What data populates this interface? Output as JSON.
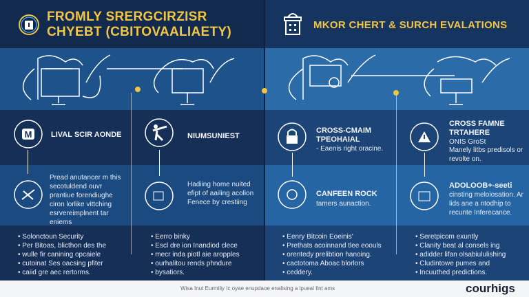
{
  "left": {
    "title_line1": "FROMLY SRERGCIRZISR",
    "title_line2": "CHYEBT (CBITOVAALIAETY)",
    "col1": {
      "heading": "LIVAL SCIR AONDE",
      "body": "Pread anutancer m this secotuldend ouvr prantiue forendiughe ciron lorlike vittching esrvereimplnent tar eniems",
      "bullets": [
        "Solonctoun Security",
        "Per Bitoas, blicthon des the",
        "wulle fir canining opcaiele",
        "cutoinat Ses oacsing pfiter",
        "caiid gre aec rertorms."
      ]
    },
    "col2": {
      "heading": "NIUMSUNIEST",
      "body": "Hadiing home nuited efipt of aailing acolion Fenece by crestiing",
      "bullets": [
        "Eerro binky",
        "Escl dre ion Inandiod clece",
        "mecr inda piotl aie aropples",
        "ourhalitou rends phndure",
        "bysatiors."
      ]
    }
  },
  "right": {
    "title": "MKOR CHERT & SURCH EVALATIONS",
    "col1": {
      "heading": "CROSS-CMAIM TPEOHAIAL",
      "sub": "- Eaenis right oracine.",
      "heading2": "CANFEEN ROCK",
      "body2": "tamers aunaction.",
      "bullets": [
        "Eenry Bitcoin Eoeinis'",
        "Prethats acoinnand tlee eoouls",
        "orentedy prelibtion hanoing.",
        "cactotoma Aboac blorlors",
        "ceddery."
      ]
    },
    "col2": {
      "heading": "CROSS FAMNE TRTAHERE",
      "sub": "ONIS GroSt",
      "body": "Manely litbs predisols or revolte on.",
      "heading2": "ADOLOOB+-seeti",
      "body2": "cinsting meloiosation. Ar lids ane a ntodhip to recunte Inferecance.",
      "bullets": [
        "Seretpicom exuntly",
        "Clanity beat al consels ing",
        "adidder lifan olsabiululishing",
        "Cludintowe pumes and",
        "Incuuthed predictions."
      ]
    }
  },
  "footer": {
    "caption": "Wisa Inut Eurmiliy Ic oyae enupdaoe enalising a lpueal Ilnt ams",
    "logo": "courhigs"
  },
  "colors": {
    "header": "#132a4f",
    "accent": "#f2c542",
    "dark_left": "#152f57",
    "mid_left": "#1b4a80",
    "dark_right": "#1c4476",
    "mid_right": "#2665a3"
  }
}
